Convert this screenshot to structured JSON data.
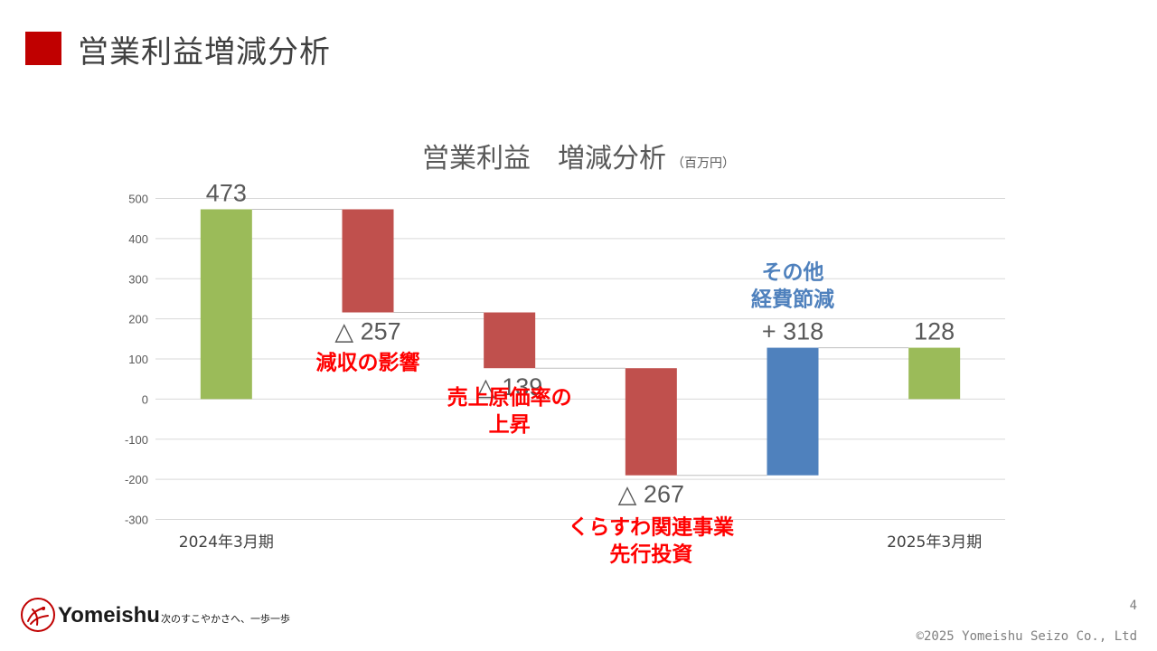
{
  "slide": {
    "title": "営業利益増減分析",
    "page_number": "4",
    "copyright": "©2025 Yomeishu Seizo Co., Ltd"
  },
  "branding": {
    "company": "Yomeishu",
    "tagline": "次のすこやかさへ、一歩一歩",
    "accent_color": "#c00000"
  },
  "chart_data": {
    "type": "bar",
    "subtype": "waterfall",
    "title": "営業利益　増減分析",
    "unit": "（百万円）",
    "ylim": [
      -300,
      500
    ],
    "yticks": [
      500,
      400,
      300,
      200,
      100,
      0,
      -100,
      -200,
      -300
    ],
    "grid": true,
    "steps": [
      {
        "kind": "total",
        "label": "2024年3月期",
        "value": 473,
        "value_label": "473",
        "color": "#9bbb59"
      },
      {
        "kind": "delta",
        "label": "",
        "value": -257,
        "value_label": "△ 257",
        "note": "減収の影響",
        "note_color": "#ff0000",
        "color": "#c0504d"
      },
      {
        "kind": "delta",
        "label": "",
        "value": -139,
        "value_label": "△ 139",
        "note": "売上原価率の\n上昇",
        "note_color": "#ff0000",
        "color": "#c0504d"
      },
      {
        "kind": "delta",
        "label": "",
        "value": -267,
        "value_label": "△ 267",
        "note": "くらすわ関連事業\n先行投資",
        "note_color": "#ff0000",
        "color": "#c0504d"
      },
      {
        "kind": "delta",
        "label": "",
        "value": 318,
        "value_label": "+ 318",
        "note": "その他\n経費節減",
        "note_color": "#4f81bd",
        "color": "#4f81bd"
      },
      {
        "kind": "total",
        "label": "2025年3月期",
        "value": 128,
        "value_label": "128",
        "color": "#9bbb59"
      }
    ]
  }
}
